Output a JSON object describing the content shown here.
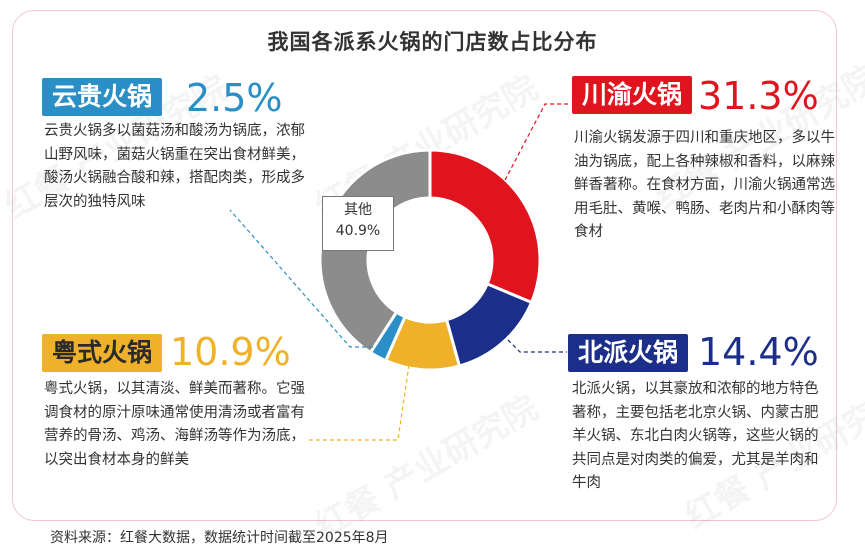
{
  "title": "我国各派系火锅的门店数占比分布",
  "watermark": "红餐 产业研究院",
  "source": "资料来源：红餐大数据，数据统计时间截至2025年8月",
  "chart_data": {
    "type": "pie",
    "donut": true,
    "start_angle": "12 o'clock, clockwise",
    "title": "我国各派系火锅的门店数占比分布",
    "slices": [
      {
        "name": "川渝火锅",
        "value": 31.3,
        "label": "31.3%",
        "color": "#e0141e"
      },
      {
        "name": "北派火锅",
        "value": 14.4,
        "label": "14.4%",
        "color": "#1b2f8a"
      },
      {
        "name": "粤式火锅",
        "value": 10.9,
        "label": "10.9%",
        "color": "#f0b12a"
      },
      {
        "name": "云贵火锅",
        "value": 2.5,
        "label": "2.5%",
        "color": "#2a8fc6"
      },
      {
        "name": "其他",
        "value": 40.9,
        "label": "40.9%",
        "color": "#8c8c8c"
      }
    ]
  },
  "center_label": {
    "name": "其他",
    "value": "40.9%"
  },
  "panels": {
    "chuanyu": {
      "tag": "川渝火锅",
      "pct": "31.3%",
      "color": "#e0141e",
      "desc": "川渝火锅发源于四川和重庆地区，多以牛油为锅底，配上各种辣椒和香料，以麻辣鲜香著称。在食材方面，川渝火锅通常选用毛肚、黄喉、鸭肠、老肉片和小酥肉等食材"
    },
    "beipai": {
      "tag": "北派火锅",
      "pct": "14.4%",
      "color": "#1b2f8a",
      "desc": "北派火锅，以其豪放和浓郁的地方特色著称，主要包括老北京火锅、内蒙古肥羊火锅、东北白肉火锅等，这些火锅的共同点是对肉类的偏爱，尤其是羊肉和牛肉"
    },
    "yueshi": {
      "tag": "粤式火锅",
      "pct": "10.9%",
      "color": "#f0b12a",
      "desc": "粤式火锅，以其清淡、鲜美而著称。它强调食材的原汁原味通常使用清汤或者富有营养的骨汤、鸡汤、海鲜汤等作为汤底，以突出食材本身的鲜美"
    },
    "yungui": {
      "tag": "云贵火锅",
      "pct": "2.5%",
      "color": "#2a8fc6",
      "desc": "云贵火锅多以菌菇汤和酸汤为锅底，浓郁山野风味，菌菇火锅重在突出食材鲜美，酸汤火锅融合酸和辣，搭配肉类，形成多层次的独特风味"
    }
  }
}
